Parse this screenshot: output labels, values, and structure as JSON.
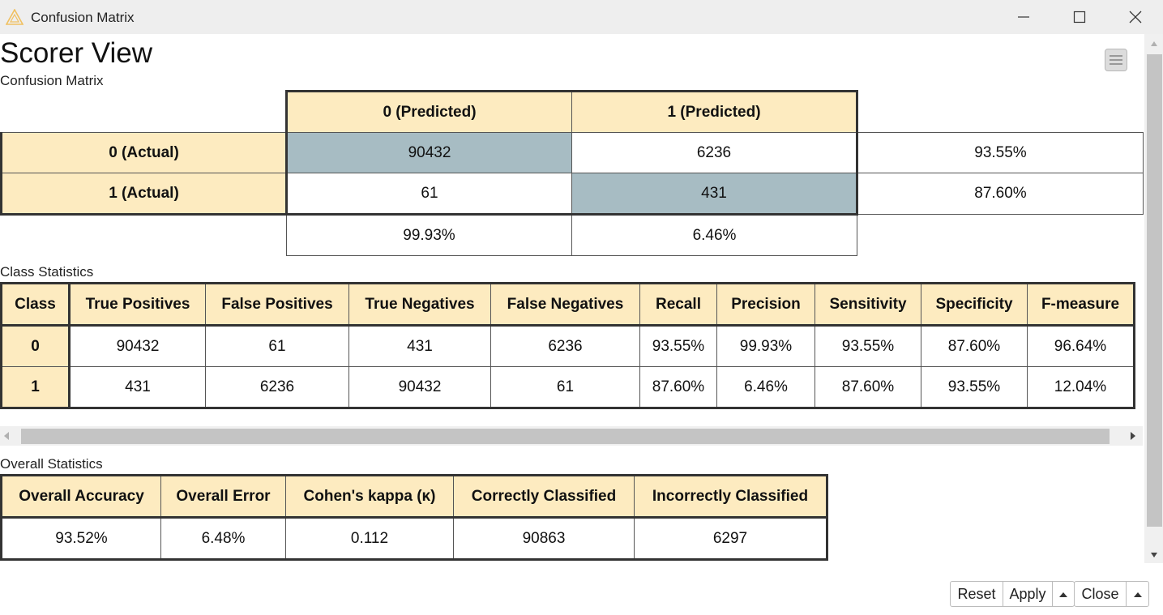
{
  "window": {
    "title": "Confusion Matrix"
  },
  "page": {
    "title": "Scorer View",
    "subtitle": "Confusion Matrix"
  },
  "confusion_matrix": {
    "col_headers": [
      "0 (Predicted)",
      "1 (Predicted)"
    ],
    "rows": [
      {
        "label": "0 (Actual)",
        "values": [
          "90432",
          "6236"
        ],
        "rate": "93.55%"
      },
      {
        "label": "1 (Actual)",
        "values": [
          "61",
          "431"
        ],
        "rate": "87.60%"
      }
    ],
    "col_rates": [
      "99.93%",
      "6.46%"
    ]
  },
  "class_statistics": {
    "label": "Class Statistics",
    "headers": [
      "Class",
      "True Positives",
      "False Positives",
      "True Negatives",
      "False Negatives",
      "Recall",
      "Precision",
      "Sensitivity",
      "Specificity",
      "F-measure"
    ],
    "rows": [
      [
        "0",
        "90432",
        "61",
        "431",
        "6236",
        "93.55%",
        "99.93%",
        "93.55%",
        "87.60%",
        "96.64%"
      ],
      [
        "1",
        "431",
        "6236",
        "90432",
        "61",
        "87.60%",
        "6.46%",
        "87.60%",
        "93.55%",
        "12.04%"
      ]
    ]
  },
  "overall_statistics": {
    "label": "Overall Statistics",
    "headers": [
      "Overall Accuracy",
      "Overall Error",
      "Cohen's kappa (κ)",
      "Correctly Classified",
      "Incorrectly Classified"
    ],
    "values": [
      "93.52%",
      "6.48%",
      "0.112",
      "90863",
      "6297"
    ]
  },
  "footer": {
    "reset": "Reset",
    "apply": "Apply",
    "close": "Close"
  }
}
